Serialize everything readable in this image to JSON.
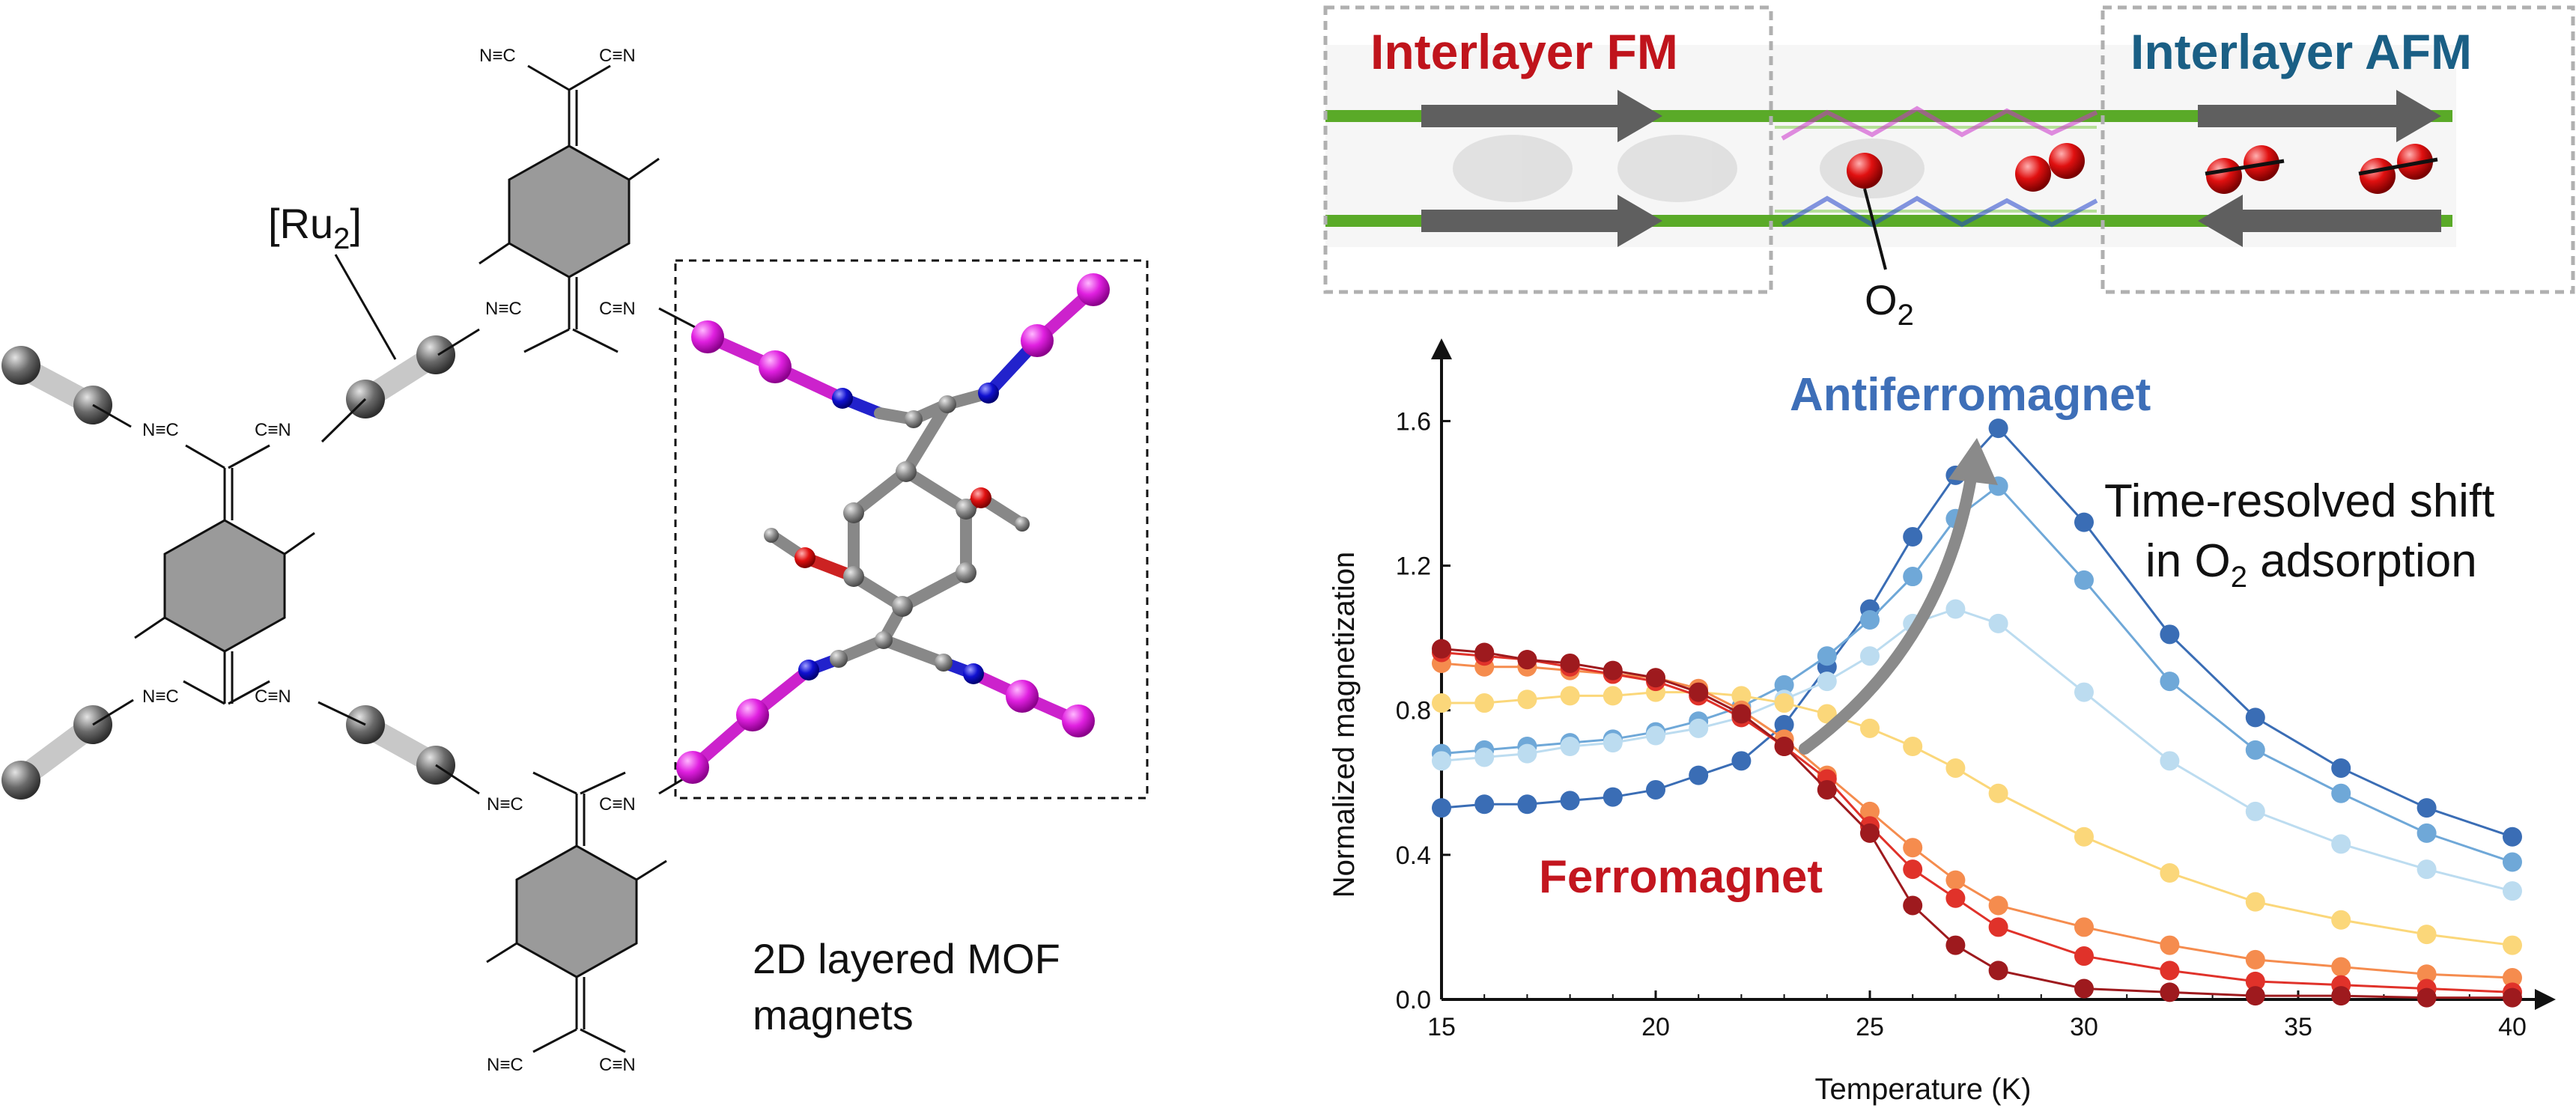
{
  "left_panel": {
    "ru2_label": "[Ru",
    "ru2_sub": "2",
    "ru2_close": "]",
    "caption_line1": "2D layered MOF",
    "caption_line2": "magnets",
    "chem_labels": {
      "nitrile": "N≡C",
      "cyano": "C≡N",
      "n": "N",
      "c": "C"
    }
  },
  "top_panel": {
    "fm_label": "Interlayer FM",
    "afm_label": "Interlayer AFM",
    "o2_label": "O",
    "o2_sub": "2",
    "colors": {
      "fm": "#c0141c",
      "afm": "#1a5f85",
      "layer": "#5aaa28",
      "arrow": "#5f5f5f",
      "o2": "#e01010"
    }
  },
  "chart_data": {
    "type": "line",
    "xlabel": "Temperature (K)",
    "ylabel": "Normalized magnetization",
    "xlim": [
      15,
      40
    ],
    "ylim": [
      0,
      1.75
    ],
    "xticks": [
      "15",
      "20",
      "25",
      "30",
      "35",
      "40"
    ],
    "yticks": [
      "0.0",
      "0.4",
      "0.8",
      "1.2",
      "1.6"
    ],
    "x": [
      15,
      16,
      17,
      18,
      19,
      20,
      21,
      22,
      23,
      24,
      25,
      26,
      27,
      28,
      30,
      32,
      34,
      36,
      38,
      40
    ],
    "series": [
      {
        "color": "#3a6db5",
        "values": [
          0.53,
          0.54,
          0.54,
          0.55,
          0.56,
          0.58,
          0.62,
          0.66,
          0.76,
          0.92,
          1.08,
          1.28,
          1.45,
          1.58,
          1.32,
          1.01,
          0.78,
          0.64,
          0.53,
          0.45
        ]
      },
      {
        "color": "#6fa8d8",
        "values": [
          0.68,
          0.69,
          0.7,
          0.71,
          0.72,
          0.74,
          0.77,
          0.81,
          0.87,
          0.95,
          1.05,
          1.17,
          1.33,
          1.42,
          1.16,
          0.88,
          0.69,
          0.57,
          0.46,
          0.38
        ]
      },
      {
        "color": "#bcdcf0",
        "values": [
          0.66,
          0.67,
          0.68,
          0.7,
          0.71,
          0.73,
          0.75,
          0.78,
          0.83,
          0.88,
          0.95,
          1.04,
          1.08,
          1.04,
          0.85,
          0.66,
          0.52,
          0.43,
          0.36,
          0.3
        ]
      },
      {
        "color": "#fbd77a",
        "values": [
          0.82,
          0.82,
          0.83,
          0.84,
          0.84,
          0.85,
          0.85,
          0.84,
          0.82,
          0.79,
          0.75,
          0.7,
          0.64,
          0.57,
          0.45,
          0.35,
          0.27,
          0.22,
          0.18,
          0.15
        ]
      },
      {
        "color": "#f58c4e",
        "values": [
          0.93,
          0.92,
          0.92,
          0.91,
          0.9,
          0.89,
          0.86,
          0.8,
          0.72,
          0.62,
          0.52,
          0.42,
          0.33,
          0.26,
          0.2,
          0.15,
          0.11,
          0.09,
          0.07,
          0.06
        ]
      },
      {
        "color": "#e0322a",
        "values": [
          0.96,
          0.95,
          0.94,
          0.92,
          0.9,
          0.88,
          0.84,
          0.78,
          0.7,
          0.61,
          0.48,
          0.36,
          0.28,
          0.2,
          0.12,
          0.08,
          0.05,
          0.04,
          0.03,
          0.02
        ]
      },
      {
        "color": "#9e1a1e",
        "values": [
          0.97,
          0.96,
          0.94,
          0.93,
          0.91,
          0.89,
          0.85,
          0.79,
          0.7,
          0.58,
          0.46,
          0.26,
          0.15,
          0.08,
          0.03,
          0.02,
          0.01,
          0.01,
          0.005,
          0.005
        ]
      }
    ],
    "annotations": {
      "antiferro": "Antiferromagnet",
      "ferro": "Ferromagnet",
      "shift_line1": "Time-resolved shift",
      "shift_line2": "in O",
      "shift_sub": "2",
      "shift_tail": " adsorption"
    },
    "colors": {
      "antiferro": "#3e6fb8",
      "ferro": "#c3161f",
      "curve_arrow": "#8a8a8a"
    }
  }
}
